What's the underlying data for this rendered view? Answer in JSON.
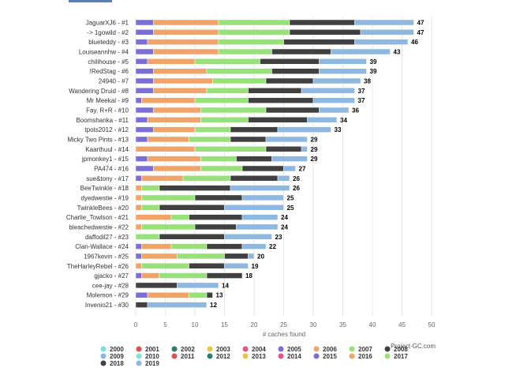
{
  "chart_data": {
    "type": "bar",
    "orientation": "horizontal",
    "stacked": true,
    "title": "",
    "xlabel": "# caches found",
    "ylabel": "",
    "xlim": [
      0,
      50
    ],
    "xticks": [
      0,
      5,
      10,
      15,
      20,
      25,
      30,
      35,
      40,
      45,
      50
    ],
    "grid": true,
    "legend_position": "bottom",
    "credit": "Project-GC.com",
    "categories": [
      "JaguarXJ6 - #1",
      "-> 1gowild - #2",
      "blueteddy - #3",
      "Louiseannhw - #4",
      "chilihouse - #5",
      "!RedStag - #6",
      "24940 - #7",
      "Wandering Druid - #8",
      "Mr Meekal - #9",
      "Fay, R+R - #10",
      "Boomshanka - #11",
      "tpots2012 - #12",
      "Micky Two Pints - #13",
      "Kaarthuul - #14",
      "jpmonkey1 - #15",
      "PA474 - #16",
      "sue&tony - #17",
      "BeeTwinkle - #18",
      "dyedwestie - #19",
      "TwinkleBees - #20",
      "Charlie_Towlson - #21",
      "bleachedwestie - #22",
      "daffodil27 - #23",
      "Clan-Wallace - #24",
      "1967kevin - #25",
      "TheHarleyRebel - #26",
      "gjacko - #27",
      "cee-jay - #28",
      "Molemon - #29",
      "Invenio21 - #30"
    ],
    "totals": [
      47,
      47,
      46,
      43,
      39,
      39,
      38,
      37,
      37,
      36,
      34,
      33,
      29,
      29,
      29,
      27,
      26,
      26,
      25,
      25,
      24,
      24,
      23,
      22,
      20,
      19,
      18,
      14,
      13,
      12
    ],
    "series": [
      {
        "name": "2000",
        "color": "#7fe0d6",
        "values": [
          0,
          0,
          0,
          0,
          0,
          0,
          0,
          0,
          0,
          0,
          0,
          0,
          0,
          0,
          0,
          0,
          0,
          0,
          0,
          0,
          0,
          0,
          0,
          0,
          0,
          0,
          0,
          0,
          0,
          0
        ]
      },
      {
        "name": "2001",
        "color": "#d9534f",
        "values": [
          0,
          0,
          0,
          0,
          0,
          0,
          0,
          0,
          0,
          0,
          0,
          0,
          0,
          0,
          0,
          0,
          0,
          0,
          0,
          0,
          0,
          0,
          0,
          0,
          0,
          0,
          0,
          0,
          0,
          0
        ]
      },
      {
        "name": "2002",
        "color": "#2e7d73",
        "values": [
          0,
          0,
          0,
          0,
          0,
          0,
          0,
          0,
          0,
          0,
          0,
          0,
          0,
          0,
          0,
          0,
          0,
          0,
          0,
          0,
          0,
          0,
          0,
          0,
          0,
          0,
          0,
          0,
          0,
          0
        ]
      },
      {
        "name": "2003",
        "color": "#e8c547",
        "values": [
          0,
          0,
          0,
          0,
          0,
          0,
          0,
          0,
          0,
          0,
          0,
          0,
          0,
          0,
          0,
          0,
          0,
          0,
          0,
          0,
          0,
          0,
          0,
          0,
          0,
          0,
          0,
          0,
          0,
          0
        ]
      },
      {
        "name": "2004",
        "color": "#e0568f",
        "values": [
          0,
          0,
          0,
          0,
          0,
          0,
          0,
          0,
          0,
          0,
          0,
          0,
          0,
          0,
          0,
          0,
          0,
          0,
          0,
          0,
          0,
          0,
          0,
          0,
          0,
          0,
          0,
          0,
          0,
          0
        ]
      },
      {
        "name": "2005",
        "color": "#7b6fd6",
        "values": [
          3,
          3,
          2,
          3,
          2,
          3,
          3,
          3,
          1,
          3,
          2,
          3,
          2,
          0,
          2,
          3,
          1,
          0,
          0,
          0,
          0,
          0,
          0,
          1,
          1,
          0,
          1,
          0,
          2,
          0
        ]
      },
      {
        "name": "2006",
        "color": "#f0a46a",
        "values": [
          11,
          11,
          12,
          11,
          8,
          9,
          10,
          9,
          9,
          8,
          9,
          7,
          7,
          10,
          9,
          8,
          7,
          1,
          1,
          1,
          6,
          1,
          0,
          5,
          6,
          1,
          3,
          0,
          7,
          0
        ]
      },
      {
        "name": "2007",
        "color": "#98e07a",
        "values": [
          12,
          12,
          11,
          9,
          11,
          11,
          9,
          7,
          9,
          11,
          8,
          6,
          7,
          12,
          6,
          7,
          8,
          3,
          9,
          3,
          3,
          9,
          4,
          6,
          8,
          8,
          8,
          0,
          3,
          0
        ]
      },
      {
        "name": "2008",
        "color": "#404040",
        "values": [
          11,
          12,
          12,
          10,
          10,
          8,
          8,
          9,
          11,
          9,
          10,
          8,
          6,
          6,
          6,
          7,
          8,
          12,
          8,
          11,
          9,
          7,
          11,
          6,
          4,
          6,
          6,
          7,
          1,
          2
        ]
      },
      {
        "name": "2009",
        "color": "#8fb8e0",
        "values": [
          10,
          9,
          9,
          10,
          8,
          8,
          8,
          9,
          7,
          5,
          5,
          9,
          7,
          1,
          6,
          2,
          2,
          10,
          7,
          10,
          6,
          7,
          8,
          4,
          1,
          4,
          0,
          7,
          0,
          10
        ]
      },
      {
        "name": "2010",
        "color": "#7fe0d6",
        "values": [
          0,
          0,
          0,
          0,
          0,
          0,
          0,
          0,
          0,
          0,
          0,
          0,
          0,
          0,
          0,
          0,
          0,
          0,
          0,
          0,
          0,
          0,
          0,
          0,
          0,
          0,
          0,
          0,
          0,
          0
        ]
      },
      {
        "name": "2011",
        "color": "#d9534f",
        "values": [
          0,
          0,
          0,
          0,
          0,
          0,
          0,
          0,
          0,
          0,
          0,
          0,
          0,
          0,
          0,
          0,
          0,
          0,
          0,
          0,
          0,
          0,
          0,
          0,
          0,
          0,
          0,
          0,
          0,
          0
        ]
      },
      {
        "name": "2012",
        "color": "#2e7d73",
        "values": [
          0,
          0,
          0,
          0,
          0,
          0,
          0,
          0,
          0,
          0,
          0,
          0,
          0,
          0,
          0,
          0,
          0,
          0,
          0,
          0,
          0,
          0,
          0,
          0,
          0,
          0,
          0,
          0,
          0,
          0
        ]
      },
      {
        "name": "2013",
        "color": "#e8c547",
        "values": [
          0,
          0,
          0,
          0,
          0,
          0,
          0,
          0,
          0,
          0,
          0,
          0,
          0,
          0,
          0,
          0,
          0,
          0,
          0,
          0,
          0,
          0,
          0,
          0,
          0,
          0,
          0,
          0,
          0,
          0
        ]
      },
      {
        "name": "2014",
        "color": "#e0568f",
        "values": [
          0,
          0,
          0,
          0,
          0,
          0,
          0,
          0,
          0,
          0,
          0,
          0,
          0,
          0,
          0,
          0,
          0,
          0,
          0,
          0,
          0,
          0,
          0,
          0,
          0,
          0,
          0,
          0,
          0,
          0
        ]
      },
      {
        "name": "2015",
        "color": "#7b6fd6",
        "values": [
          0,
          0,
          0,
          0,
          0,
          0,
          0,
          0,
          0,
          0,
          0,
          0,
          0,
          0,
          0,
          0,
          0,
          0,
          0,
          0,
          0,
          0,
          0,
          0,
          0,
          0,
          0,
          0,
          0,
          0
        ]
      },
      {
        "name": "2016",
        "color": "#f0a46a",
        "values": [
          0,
          0,
          0,
          0,
          0,
          0,
          0,
          0,
          0,
          0,
          0,
          0,
          0,
          0,
          0,
          0,
          0,
          0,
          0,
          0,
          0,
          0,
          0,
          0,
          0,
          0,
          0,
          0,
          0,
          0
        ]
      },
      {
        "name": "2017",
        "color": "#98e07a",
        "values": [
          0,
          0,
          0,
          0,
          0,
          0,
          0,
          0,
          0,
          0,
          0,
          0,
          0,
          0,
          0,
          0,
          0,
          0,
          0,
          0,
          0,
          0,
          0,
          0,
          0,
          0,
          0,
          0,
          0,
          0
        ]
      },
      {
        "name": "2018",
        "color": "#404040",
        "values": [
          0,
          0,
          0,
          0,
          0,
          0,
          0,
          0,
          0,
          0,
          0,
          0,
          0,
          0,
          0,
          0,
          0,
          0,
          0,
          0,
          0,
          0,
          0,
          0,
          0,
          0,
          0,
          0,
          0,
          0
        ]
      },
      {
        "name": "2019",
        "color": "#8fb8e0",
        "values": [
          0,
          0,
          0,
          0,
          0,
          0,
          0,
          0,
          0,
          0,
          0,
          0,
          0,
          0,
          0,
          0,
          0,
          0,
          0,
          0,
          0,
          0,
          0,
          0,
          0,
          0,
          0,
          0,
          0,
          0
        ]
      }
    ],
    "legend_rows": [
      [
        "2000",
        "2001",
        "2002",
        "2003",
        "2004",
        "2005",
        "2006",
        "2007",
        "2008"
      ],
      [
        "2009",
        "2010",
        "2011",
        "2012",
        "2013",
        "2014",
        "2015",
        "2016",
        "2017"
      ],
      [
        "2018",
        "2019"
      ]
    ]
  }
}
